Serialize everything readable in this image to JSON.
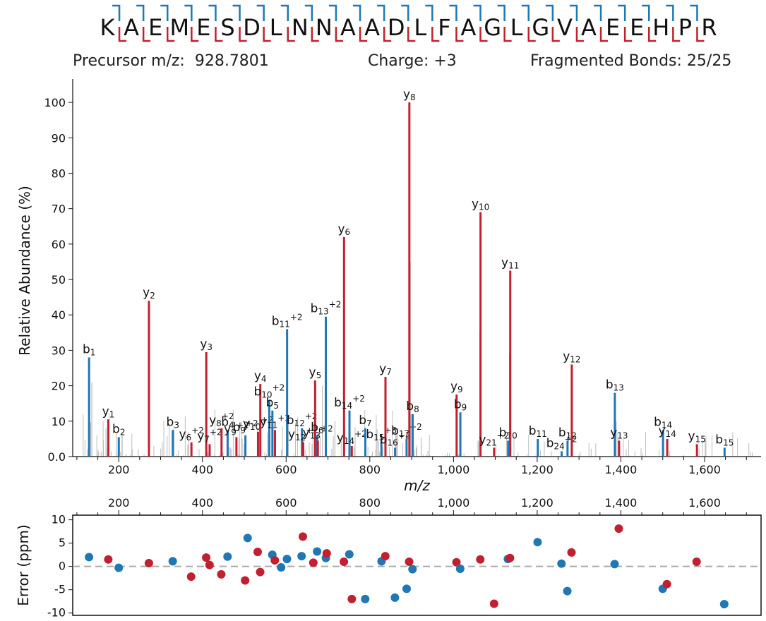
{
  "sequence": "KAEMESDLNNAADLFAGLGVAEEHPR",
  "info": {
    "precursor_label": "Precursor m/z:",
    "precursor_value": "928.7801",
    "charge_label": "Charge:",
    "charge_value": "+3",
    "bonds_label": "Fragmented Bonds:",
    "bonds_value": "25/25"
  },
  "colors": {
    "b_ion": "#1f77b4",
    "y_ion": "#c0202f",
    "unmatched": "#bdbdbd",
    "zero_line": "#aaaaaa"
  },
  "chart_data": [
    {
      "type": "bar",
      "xlabel": "m/z",
      "ylabel": "Relative Abundance (%)",
      "xlim": [
        90,
        1735
      ],
      "ylim": [
        0,
        105
      ],
      "x_ticks": [
        "200",
        "400",
        "600",
        "800",
        "1,000",
        "1,200",
        "1,400",
        "1,600"
      ],
      "y_ticks": [
        "0.0",
        "10",
        "20",
        "30",
        "40",
        "50",
        "60",
        "70",
        "80",
        "90",
        "100"
      ],
      "peaks": [
        {
          "ion": "b",
          "label": "b",
          "num": "1",
          "charge": "",
          "mz": 129.1,
          "intensity": 28
        },
        {
          "ion": "y",
          "label": "y",
          "num": "1",
          "charge": "",
          "mz": 175.1,
          "intensity": 10.5
        },
        {
          "ion": "b",
          "label": "b",
          "num": "2",
          "charge": "",
          "mz": 200.1,
          "intensity": 5.5
        },
        {
          "ion": "y",
          "label": "y",
          "num": "2",
          "charge": "",
          "mz": 272.2,
          "intensity": 44
        },
        {
          "ion": "b",
          "label": "b",
          "num": "3",
          "charge": "",
          "mz": 329.2,
          "intensity": 7.5
        },
        {
          "ion": "y",
          "label": "y",
          "num": "6",
          "charge": "+2",
          "mz": 373.7,
          "intensity": 4
        },
        {
          "ion": "y",
          "label": "y",
          "num": "3",
          "charge": "",
          "mz": 409.2,
          "intensity": 29.5
        },
        {
          "ion": "y",
          "label": "y",
          "num": "7",
          "charge": "+2",
          "mz": 417.2,
          "intensity": 3.5
        },
        {
          "ion": "y",
          "label": "y",
          "num": "8",
          "charge": "+2",
          "mz": 445.7,
          "intensity": 8
        },
        {
          "ion": "b",
          "label": "b",
          "num": "4",
          "charge": "",
          "mz": 460.2,
          "intensity": 7.5
        },
        {
          "ion": "y",
          "label": "y",
          "num": "9",
          "charge": "+2",
          "mz": 481.2,
          "intensity": 5.5
        },
        {
          "ion": "b",
          "label": "b",
          "num": "9",
          "charge": "+2",
          "mz": 502.7,
          "intensity": 6
        },
        {
          "ion": "y",
          "label": "y",
          "num": "10",
          "charge": "+2",
          "mz": 532.8,
          "intensity": 7
        },
        {
          "ion": "y",
          "label": "y",
          "num": "4",
          "charge": "",
          "mz": 538.3,
          "intensity": 20.5
        },
        {
          "ion": "b",
          "label": "b",
          "num": "10",
          "charge": "+2",
          "mz": 559.7,
          "intensity": 16
        },
        {
          "ion": "b",
          "label": "b",
          "num": "5",
          "charge": "",
          "mz": 567.2,
          "intensity": 13
        },
        {
          "ion": "y",
          "label": "y",
          "num": "11",
          "charge": "+2",
          "mz": 573.3,
          "intensity": 7.5
        },
        {
          "ion": "b",
          "label": "b",
          "num": "11",
          "charge": "+2",
          "mz": 602.3,
          "intensity": 36
        },
        {
          "ion": "b",
          "label": "b",
          "num": "12",
          "charge": "+2",
          "mz": 637.8,
          "intensity": 8
        },
        {
          "ion": "y",
          "label": "y",
          "num": "12",
          "charge": "+2",
          "mz": 640.8,
          "intensity": 4
        },
        {
          "ion": "y",
          "label": "y",
          "num": "5",
          "charge": "",
          "mz": 669.3,
          "intensity": 21.5
        },
        {
          "ion": "b",
          "label": "b",
          "num": "6",
          "charge": "",
          "mz": 674.3,
          "intensity": 6
        },
        {
          "ion": "y",
          "label": "y",
          "num": "13",
          "charge": "+2",
          "mz": 675.8,
          "intensity": 4.5
        },
        {
          "ion": "b",
          "label": "b",
          "num": "13",
          "charge": "+2",
          "mz": 694.9,
          "intensity": 39.5
        },
        {
          "ion": "y",
          "label": "y",
          "num": "6",
          "charge": "",
          "mz": 738.4,
          "intensity": 62
        },
        {
          "ion": "b",
          "label": "b",
          "num": "14",
          "charge": "+2",
          "mz": 751.4,
          "intensity": 13
        },
        {
          "ion": "y",
          "label": "y",
          "num": "14",
          "charge": "+2",
          "mz": 756.9,
          "intensity": 3
        },
        {
          "ion": "b",
          "label": "b",
          "num": "7",
          "charge": "",
          "mz": 789.3,
          "intensity": 8
        },
        {
          "ion": "b",
          "label": "b",
          "num": "15",
          "charge": "+3",
          "mz": 827.7,
          "intensity": 4
        },
        {
          "ion": "y",
          "label": "y",
          "num": "7",
          "charge": "",
          "mz": 837.4,
          "intensity": 22.5
        },
        {
          "ion": "b",
          "label": "b",
          "num": "16",
          "charge": "+2",
          "mz": 860.4,
          "intensity": 2.5
        },
        {
          "ion": "b",
          "label": "b",
          "num": "17",
          "charge": "+2",
          "mz": 887.9,
          "intensity": 5
        },
        {
          "ion": "y",
          "label": "y",
          "num": "8",
          "charge": "",
          "mz": 894.5,
          "intensity": 100
        },
        {
          "ion": "b",
          "label": "b",
          "num": "8",
          "charge": "",
          "mz": 902.4,
          "intensity": 12
        },
        {
          "ion": "y",
          "label": "y",
          "num": "9",
          "charge": "",
          "mz": 1007.5,
          "intensity": 17.5
        },
        {
          "ion": "b",
          "label": "b",
          "num": "9",
          "charge": "",
          "mz": 1016.4,
          "intensity": 12.5
        },
        {
          "ion": "y",
          "label": "y",
          "num": "10",
          "charge": "",
          "mz": 1064.6,
          "intensity": 69
        },
        {
          "ion": "y",
          "label": "y",
          "num": "21",
          "charge": "+2",
          "mz": 1097.0,
          "intensity": 2.5
        },
        {
          "ion": "b",
          "label": "b",
          "num": "10",
          "charge": "",
          "mz": 1130.5,
          "intensity": 4.5
        },
        {
          "ion": "y",
          "label": "y",
          "num": "11",
          "charge": "",
          "mz": 1135.6,
          "intensity": 52.5
        },
        {
          "ion": "b",
          "label": "b",
          "num": "11",
          "charge": "",
          "mz": 1201.5,
          "intensity": 5
        },
        {
          "ion": "b",
          "label": "b",
          "num": "24",
          "charge": "+2",
          "mz": 1258.6,
          "intensity": 1.5
        },
        {
          "ion": "b",
          "label": "b",
          "num": "12",
          "charge": "",
          "mz": 1272.5,
          "intensity": 4.5
        },
        {
          "ion": "y",
          "label": "y",
          "num": "12",
          "charge": "",
          "mz": 1282.7,
          "intensity": 26
        },
        {
          "ion": "b",
          "label": "b",
          "num": "13",
          "charge": "",
          "mz": 1385.6,
          "intensity": 18
        },
        {
          "ion": "y",
          "label": "y",
          "num": "13",
          "charge": "",
          "mz": 1395.7,
          "intensity": 4.5
        },
        {
          "ion": "b",
          "label": "b",
          "num": "14",
          "charge": "",
          "mz": 1500.7,
          "intensity": 7.5
        },
        {
          "ion": "y",
          "label": "y",
          "num": "14",
          "charge": "",
          "mz": 1510.8,
          "intensity": 5
        },
        {
          "ion": "y",
          "label": "y",
          "num": "15",
          "charge": "",
          "mz": 1581.8,
          "intensity": 3.5
        },
        {
          "ion": "b",
          "label": "b",
          "num": "15",
          "charge": "",
          "mz": 1647.8,
          "intensity": 2.5
        }
      ]
    },
    {
      "type": "scatter",
      "xlabel": "",
      "ylabel": "Error (ppm)",
      "xlim": [
        90,
        1735
      ],
      "ylim": [
        -10.5,
        11
      ],
      "x_ticks": [
        "200",
        "400",
        "600",
        "800",
        "1,000",
        "1,200",
        "1,400",
        "1,600"
      ],
      "y_ticks": [
        "-10",
        "-5",
        "0",
        "5",
        "10"
      ],
      "points": [
        {
          "ion": "b",
          "mz": 129,
          "ppm": 2
        },
        {
          "ion": "y",
          "mz": 175,
          "ppm": 1.5
        },
        {
          "ion": "b",
          "mz": 200,
          "ppm": -0.3
        },
        {
          "ion": "y",
          "mz": 272,
          "ppm": 0.7
        },
        {
          "ion": "b",
          "mz": 329,
          "ppm": 1.1
        },
        {
          "ion": "y",
          "mz": 373,
          "ppm": -2.2
        },
        {
          "ion": "y",
          "mz": 409,
          "ppm": 1.9
        },
        {
          "ion": "y",
          "mz": 417,
          "ppm": 0.3
        },
        {
          "ion": "y",
          "mz": 445,
          "ppm": -1.7
        },
        {
          "ion": "b",
          "mz": 460,
          "ppm": 2.1
        },
        {
          "ion": "y",
          "mz": 502,
          "ppm": -3
        },
        {
          "ion": "b",
          "mz": 508,
          "ppm": 6.1
        },
        {
          "ion": "y",
          "mz": 532,
          "ppm": 3.1
        },
        {
          "ion": "y",
          "mz": 538,
          "ppm": -1.2
        },
        {
          "ion": "b",
          "mz": 567,
          "ppm": 2.5
        },
        {
          "ion": "y",
          "mz": 573,
          "ppm": 1.3
        },
        {
          "ion": "b",
          "mz": 588,
          "ppm": -0.2
        },
        {
          "ion": "b",
          "mz": 602,
          "ppm": 1.6
        },
        {
          "ion": "b",
          "mz": 637,
          "ppm": 2.2
        },
        {
          "ion": "y",
          "mz": 640,
          "ppm": 6.4
        },
        {
          "ion": "y",
          "mz": 665,
          "ppm": 0.8
        },
        {
          "ion": "b",
          "mz": 674,
          "ppm": 3.2
        },
        {
          "ion": "b",
          "mz": 695,
          "ppm": 1.8
        },
        {
          "ion": "y",
          "mz": 697,
          "ppm": 2.8
        },
        {
          "ion": "y",
          "mz": 738,
          "ppm": 1
        },
        {
          "ion": "b",
          "mz": 751,
          "ppm": 2.6
        },
        {
          "ion": "y",
          "mz": 757,
          "ppm": -7
        },
        {
          "ion": "b",
          "mz": 789,
          "ppm": -7
        },
        {
          "ion": "b",
          "mz": 828,
          "ppm": 1.1
        },
        {
          "ion": "y",
          "mz": 837,
          "ppm": 2.2
        },
        {
          "ion": "b",
          "mz": 860,
          "ppm": -6.7
        },
        {
          "ion": "b",
          "mz": 888,
          "ppm": -4.8
        },
        {
          "ion": "y",
          "mz": 894,
          "ppm": 1
        },
        {
          "ion": "b",
          "mz": 902,
          "ppm": -0.6
        },
        {
          "ion": "y",
          "mz": 1007,
          "ppm": 0.9
        },
        {
          "ion": "b",
          "mz": 1016,
          "ppm": -0.5
        },
        {
          "ion": "y",
          "mz": 1064,
          "ppm": 1.5
        },
        {
          "ion": "y",
          "mz": 1097,
          "ppm": -8
        },
        {
          "ion": "b",
          "mz": 1130,
          "ppm": 1.6
        },
        {
          "ion": "y",
          "mz": 1135,
          "ppm": 1.8
        },
        {
          "ion": "b",
          "mz": 1201,
          "ppm": 5.2
        },
        {
          "ion": "b",
          "mz": 1258,
          "ppm": 0.6
        },
        {
          "ion": "b",
          "mz": 1272,
          "ppm": -5.3
        },
        {
          "ion": "y",
          "mz": 1282,
          "ppm": 3
        },
        {
          "ion": "b",
          "mz": 1385,
          "ppm": 0.5
        },
        {
          "ion": "y",
          "mz": 1395,
          "ppm": 8.1
        },
        {
          "ion": "b",
          "mz": 1500,
          "ppm": -4.8
        },
        {
          "ion": "y",
          "mz": 1510,
          "ppm": -3.8
        },
        {
          "ion": "y",
          "mz": 1581,
          "ppm": 1
        },
        {
          "ion": "b",
          "mz": 1647,
          "ppm": -8.1
        }
      ]
    }
  ]
}
